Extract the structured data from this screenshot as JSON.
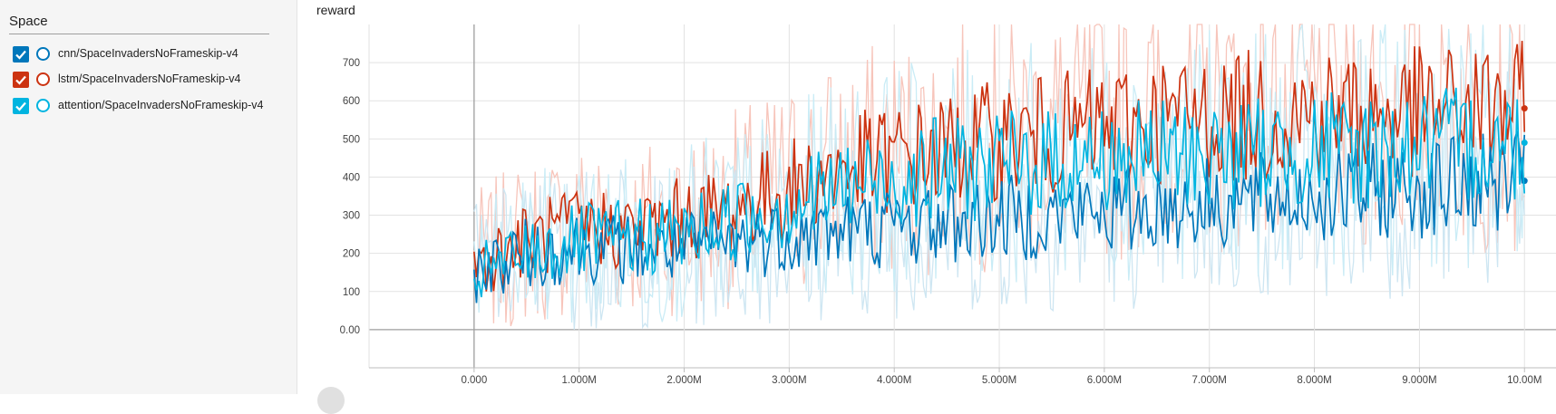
{
  "sidebar": {
    "title": "Space",
    "runs": [
      {
        "label": "cnn/SpaceInvadersNoFrameskip-v4",
        "color": "#0077bb",
        "checked": true
      },
      {
        "label": "lstm/SpaceInvadersNoFrameskip-v4",
        "color": "#cc3311",
        "checked": true
      },
      {
        "label": "attention/SpaceInvadersNoFrameskip-v4",
        "color": "#00b4e0",
        "checked": true
      }
    ]
  },
  "chart_data": {
    "type": "line",
    "title": "reward",
    "xlabel": "",
    "ylabel": "",
    "xlim": [
      -1000000,
      10300000
    ],
    "ylim": [
      -100,
      800
    ],
    "grid": true,
    "x_ticks": [
      0,
      1000000,
      2000000,
      3000000,
      4000000,
      5000000,
      6000000,
      7000000,
      8000000,
      9000000,
      10000000
    ],
    "x_tick_labels": [
      "0.000",
      "1.000M",
      "2.000M",
      "3.000M",
      "4.000M",
      "5.000M",
      "6.000M",
      "7.000M",
      "8.000M",
      "9.000M",
      "10.00M"
    ],
    "y_ticks": [
      0,
      100,
      200,
      300,
      400,
      500,
      600,
      700
    ],
    "y_tick_labels": [
      "0.00",
      "100",
      "200",
      "300",
      "400",
      "500",
      "600",
      "700"
    ],
    "series": [
      {
        "name": "lstm/SpaceInvadersNoFrameskip-v4",
        "color": "#cc3311",
        "raw_color": "#f7c2b7",
        "x": [
          0,
          500000,
          1000000,
          1500000,
          2000000,
          2500000,
          3000000,
          3500000,
          4000000,
          4500000,
          5000000,
          5500000,
          6000000,
          6500000,
          7000000,
          7500000,
          8000000,
          8500000,
          9000000,
          9500000,
          10000000
        ],
        "values": [
          170,
          230,
          270,
          260,
          290,
          320,
          370,
          420,
          450,
          470,
          500,
          510,
          530,
          550,
          560,
          560,
          570,
          570,
          570,
          580,
          580
        ]
      },
      {
        "name": "cnn/SpaceInvadersNoFrameskip-v4",
        "color": "#0077bb",
        "raw_color": "#cbe5f1",
        "x": [
          0,
          500000,
          1000000,
          1500000,
          2000000,
          2500000,
          3000000,
          3500000,
          4000000,
          4500000,
          5000000,
          5500000,
          6000000,
          6500000,
          7000000,
          7500000,
          8000000,
          8500000,
          9000000,
          9500000,
          10000000
        ],
        "values": [
          150,
          200,
          220,
          210,
          210,
          230,
          250,
          260,
          270,
          280,
          290,
          300,
          310,
          320,
          330,
          340,
          350,
          360,
          370,
          380,
          390
        ]
      },
      {
        "name": "attention/SpaceInvadersNoFrameskip-v4",
        "color": "#00b4e0",
        "raw_color": "#c7ebf6",
        "x": [
          0,
          500000,
          1000000,
          1500000,
          2000000,
          2500000,
          3000000,
          3500000,
          4000000,
          4500000,
          5000000,
          5500000,
          6000000,
          6500000,
          7000000,
          7500000,
          8000000,
          8500000,
          9000000,
          9500000,
          10000000
        ],
        "values": [
          140,
          200,
          230,
          240,
          250,
          290,
          330,
          370,
          400,
          420,
          430,
          440,
          450,
          455,
          460,
          465,
          470,
          470,
          480,
          485,
          490
        ]
      }
    ]
  }
}
